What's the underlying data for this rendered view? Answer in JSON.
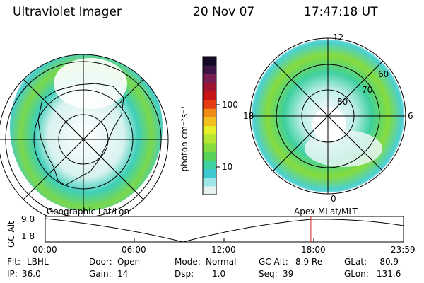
{
  "header": {
    "instrument": "Ultraviolet Imager",
    "date": "20 Nov 07",
    "time": "17:47:18 UT"
  },
  "colorbar": {
    "unit_text": "photon cm⁻²s⁻¹",
    "scale": "log",
    "ticks": [
      "100",
      "10"
    ],
    "colors": [
      "#e6f2f2",
      "#9fe6e6",
      "#3ec8d2",
      "#3fd0a0",
      "#5ad25a",
      "#86dc3c",
      "#b4e632",
      "#e6f028",
      "#f0c020",
      "#f08c14",
      "#e63c14",
      "#c81414",
      "#a01432",
      "#781e50",
      "#3c1446",
      "#140a28"
    ]
  },
  "left_map": {
    "label": "Geographic Lat/Lon"
  },
  "right_map": {
    "label": "Apex MLat/MLT",
    "mlt_labels": {
      "top": "12",
      "left": "18",
      "right": "6",
      "bottom": "0"
    },
    "lat_labels": [
      "80",
      "70",
      "60"
    ]
  },
  "altitude_plot": {
    "ylabel": "GC Alt",
    "y_ticks": [
      "9.0",
      "1.8"
    ],
    "x_ticks": [
      "00:00",
      "06:00",
      "12:00",
      "18:00",
      "23:59"
    ],
    "current_time_marker": "17:47",
    "marker_color": "#d21e1e"
  },
  "info": {
    "filter_label": "Flt:",
    "filter_value": "LBHL",
    "door_label": "Door:",
    "door_value": "Open",
    "mode_label": "Mode:",
    "mode_value": "Normal",
    "gcalt_label": "GC Alt:",
    "gcalt_value": "8.9 Re",
    "glat_label": "GLat:",
    "glat_value": "-80.9",
    "ip_label": "IP:",
    "ip_value": "36.0",
    "gain_label": "Gain:",
    "gain_value": "14",
    "dsp_label": "Dsp:",
    "dsp_value": "1.0",
    "seq_label": "Seq:",
    "seq_value": "39",
    "glon_label": "GLon:",
    "glon_value": "131.6"
  }
}
